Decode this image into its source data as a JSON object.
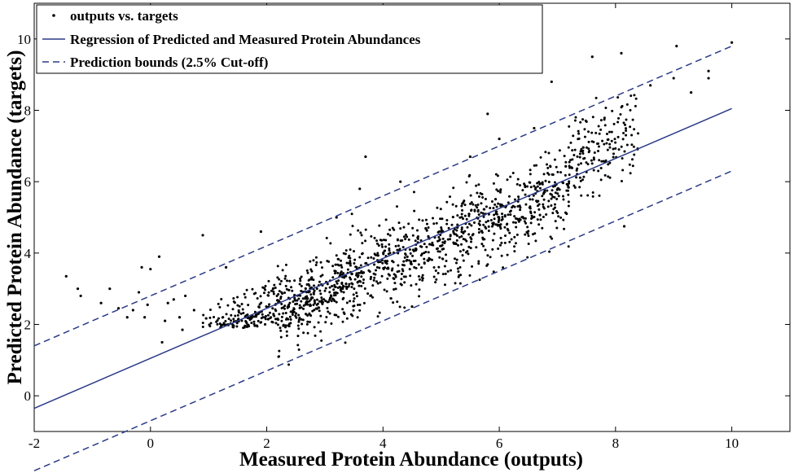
{
  "chart_data": {
    "type": "scatter",
    "xlabel": "Measured Protein Abundance (outputs)",
    "ylabel": "Predicted Protein Abundance (targets)",
    "xlim": [
      -2,
      11
    ],
    "ylim": [
      -1,
      11
    ],
    "xticks": [
      "-2",
      "0",
      "2",
      "4",
      "6",
      "8",
      "10"
    ],
    "yticks": [
      "0",
      "2",
      "4",
      "6",
      "8",
      "10"
    ],
    "grid": false,
    "legend_position": "top-left",
    "legend": [
      {
        "label": "outputs vs. targets",
        "style": "point"
      },
      {
        "label": "Regression of Predicted and Measured Protein Abundances",
        "style": "solid"
      },
      {
        "label": "Prediction bounds (2.5% Cut-off)",
        "style": "dashed"
      }
    ],
    "colors": {
      "points": "#000000",
      "regression": "#2b3a87",
      "bounds": "#2b3a87"
    },
    "regression": {
      "slope": 0.7,
      "intercept": 1.05,
      "x_range": [
        -2,
        10
      ]
    },
    "bounds": {
      "offset": 1.75,
      "x_range": [
        -2,
        10
      ]
    },
    "series": [
      {
        "name": "outputs vs. targets",
        "points": [
          [
            -1.45,
            3.35
          ],
          [
            -1.25,
            3.0
          ],
          [
            -1.2,
            2.8
          ],
          [
            -0.85,
            2.6
          ],
          [
            -0.7,
            3.0
          ],
          [
            -0.55,
            2.45
          ],
          [
            -0.4,
            2.2
          ],
          [
            -0.3,
            2.4
          ],
          [
            -0.2,
            2.9
          ],
          [
            -0.15,
            3.6
          ],
          [
            -0.1,
            2.2
          ],
          [
            -0.05,
            2.55
          ],
          [
            0.0,
            3.55
          ],
          [
            0.15,
            3.9
          ],
          [
            0.25,
            2.1
          ],
          [
            0.3,
            2.6
          ],
          [
            0.4,
            2.7
          ],
          [
            0.5,
            2.2
          ],
          [
            0.55,
            1.85
          ],
          [
            0.6,
            2.8
          ],
          [
            0.75,
            2.4
          ],
          [
            0.9,
            4.5
          ],
          [
            0.2,
            1.5
          ],
          [
            1.3,
            3.6
          ],
          [
            1.9,
            4.6
          ],
          [
            3.2,
            5.0
          ],
          [
            3.7,
            6.7
          ],
          [
            3.6,
            5.8
          ],
          [
            4.3,
            6.0
          ],
          [
            4.5,
            2.5
          ],
          [
            5.5,
            6.7
          ],
          [
            5.8,
            7.9
          ],
          [
            6.0,
            7.2
          ],
          [
            6.6,
            7.5
          ],
          [
            6.9,
            8.8
          ],
          [
            8.15,
            4.75
          ],
          [
            7.6,
            9.5
          ],
          [
            8.1,
            9.6
          ],
          [
            8.6,
            8.7
          ],
          [
            9.0,
            8.9
          ],
          [
            9.05,
            9.8
          ],
          [
            9.3,
            8.5
          ],
          [
            9.6,
            8.9
          ],
          [
            9.6,
            9.1
          ],
          [
            10.0,
            9.9
          ]
        ]
      }
    ]
  }
}
